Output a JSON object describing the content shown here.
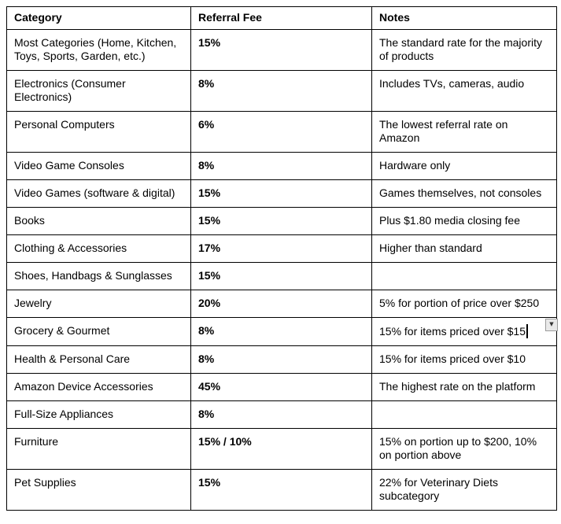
{
  "table": {
    "columns": [
      "Category",
      "Referral Fee",
      "Notes"
    ],
    "rows": [
      {
        "category": "Most Categories (Home, Kitchen, Toys, Sports, Garden, etc.)",
        "fee": "15%",
        "notes": "The standard rate for the majority of products"
      },
      {
        "category": "Electronics (Consumer Electronics)",
        "fee": "8%",
        "notes": "Includes TVs, cameras, audio"
      },
      {
        "category": "Personal Computers",
        "fee": "6%",
        "notes": "The lowest referral rate on Amazon"
      },
      {
        "category": "Video Game Consoles",
        "fee": "8%",
        "notes": "Hardware only"
      },
      {
        "category": "Video Games (software & digital)",
        "fee": "15%",
        "notes": "Games themselves, not consoles"
      },
      {
        "category": "Books",
        "fee": "15%",
        "notes": "Plus $1.80 media closing fee"
      },
      {
        "category": "Clothing & Accessories",
        "fee": "17%",
        "notes": "Higher than standard"
      },
      {
        "category": "Shoes, Handbags & Sunglasses",
        "fee": "15%",
        "notes": ""
      },
      {
        "category": "Jewelry",
        "fee": "20%",
        "notes": "5% for portion of price over $250"
      },
      {
        "category": "Grocery & Gourmet",
        "fee": "8%",
        "notes": "15% for items priced over $15",
        "text_cursor": true,
        "has_dropdown": true
      },
      {
        "category": "Health & Personal Care",
        "fee": "8%",
        "notes": "15% for items priced over $10"
      },
      {
        "category": "Amazon Device Accessories",
        "fee": "45%",
        "notes": "The highest rate on the platform"
      },
      {
        "category": "Full-Size Appliances",
        "fee": "8%",
        "notes": ""
      },
      {
        "category": "Furniture",
        "fee": "15% / 10%",
        "notes": "15% on portion up to $200, 10% on portion above"
      },
      {
        "category": "Pet Supplies",
        "fee": "15%",
        "notes": "22% for Veterinary Diets subcategory"
      }
    ]
  },
  "icons": {
    "dropdown": "▼"
  }
}
